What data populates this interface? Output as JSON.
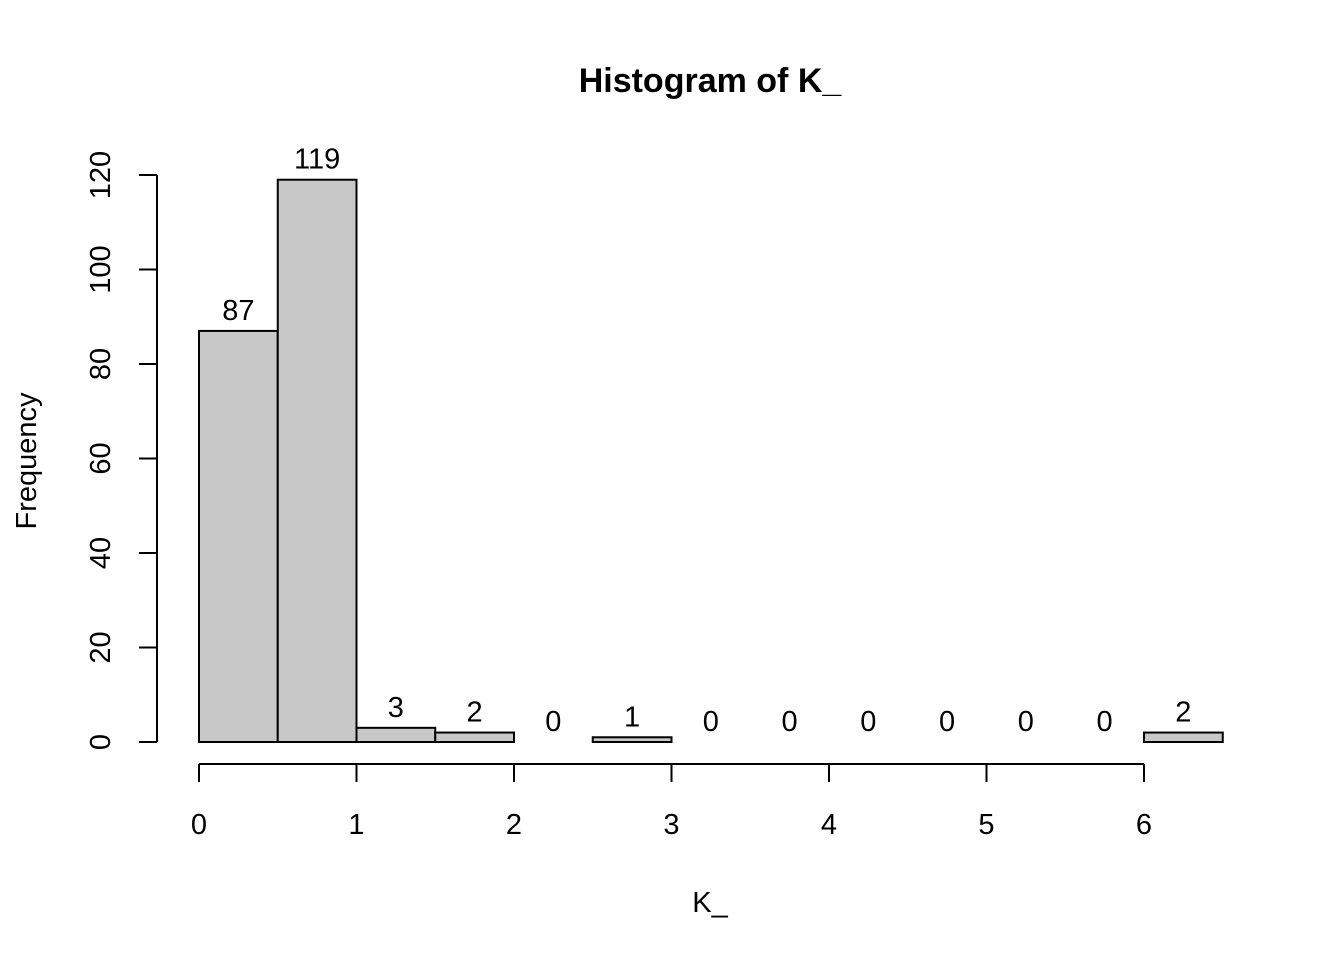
{
  "chart_data": {
    "type": "bar",
    "title": "Histogram of K_",
    "xlabel": "K_",
    "ylabel": "Frequency",
    "bin_edges": [
      0,
      0.5,
      1,
      1.5,
      2,
      2.5,
      3,
      3.5,
      4,
      4.5,
      5,
      5.5,
      6,
      6.5
    ],
    "values": [
      87,
      119,
      3,
      2,
      0,
      1,
      0,
      0,
      0,
      0,
      0,
      0,
      2
    ],
    "xlim": [
      0,
      6.5
    ],
    "ylim": [
      0,
      120
    ],
    "x_ticks": [
      0,
      1,
      2,
      3,
      4,
      5,
      6
    ],
    "y_ticks": [
      0,
      20,
      40,
      60,
      80,
      100,
      120
    ],
    "bar_labels_shown": true,
    "grid": false,
    "colors": {
      "bar_fill": "#c8c8c8",
      "bar_stroke": "#000000"
    }
  }
}
